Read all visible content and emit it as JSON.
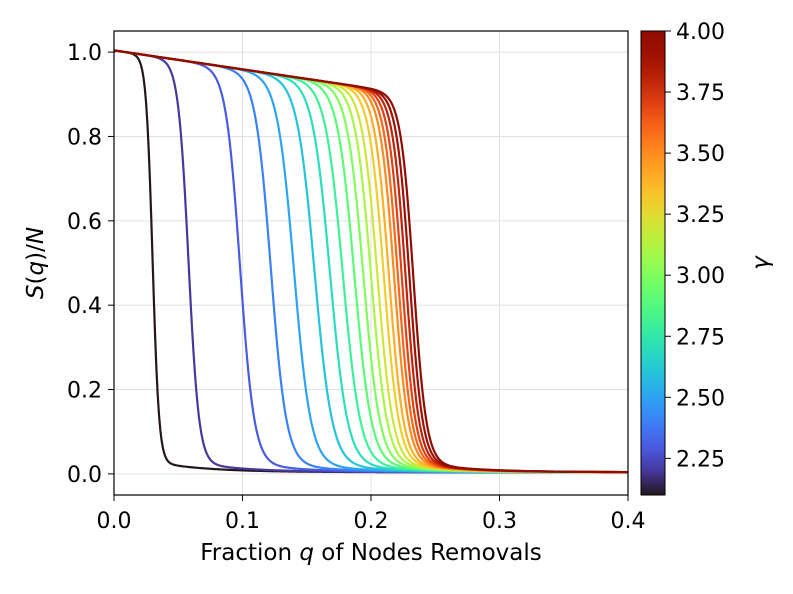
{
  "chart_data": {
    "type": "line",
    "title": "",
    "xlabel": {
      "pre": "Fraction ",
      "var": "q",
      "post": " of Nodes Removals"
    },
    "ylabel": {
      "a": "S",
      "b": "(",
      "c": "q",
      "d": ")/",
      "e": "N"
    },
    "xlim": [
      0.0,
      0.4
    ],
    "ylim": [
      -0.05,
      1.05
    ],
    "grid": true,
    "xticks": [
      0.0,
      0.1,
      0.2,
      0.3,
      0.4
    ],
    "xtick_labels": [
      "0.0",
      "0.1",
      "0.2",
      "0.3",
      "0.4"
    ],
    "yticks": [
      0.0,
      0.2,
      0.4,
      0.6,
      0.8,
      1.0
    ],
    "ytick_labels": [
      "0.0",
      "0.2",
      "0.4",
      "0.6",
      "0.8",
      "1.0"
    ],
    "colorbar": {
      "label": "γ",
      "colormap": "turbo",
      "range": [
        2.1,
        4.0
      ],
      "ticks": [
        2.25,
        2.5,
        2.75,
        3.0,
        3.25,
        3.5,
        3.75,
        4.0
      ],
      "tick_labels": [
        "2.25",
        "2.50",
        "2.75",
        "3.00",
        "3.25",
        "3.50",
        "3.75",
        "4.00"
      ]
    },
    "series_model": "logistic collapse: S(q) = (1 - 0.45q) * (1 - 1/(1 + exp(-(q - qc)/w))) with small residual tail",
    "series": [
      {
        "gamma": 2.1,
        "qc": 0.03,
        "w": 0.0025
      },
      {
        "gamma": 2.2,
        "qc": 0.058,
        "w": 0.004
      },
      {
        "gamma": 2.3,
        "qc": 0.098,
        "w": 0.0055
      },
      {
        "gamma": 2.4,
        "qc": 0.122,
        "w": 0.006
      },
      {
        "gamma": 2.5,
        "qc": 0.14,
        "w": 0.0065
      },
      {
        "gamma": 2.6,
        "qc": 0.156,
        "w": 0.0068
      },
      {
        "gamma": 2.7,
        "qc": 0.168,
        "w": 0.0068
      },
      {
        "gamma": 2.8,
        "qc": 0.178,
        "w": 0.0068
      },
      {
        "gamma": 2.9,
        "qc": 0.187,
        "w": 0.0066
      },
      {
        "gamma": 3.0,
        "qc": 0.194,
        "w": 0.0064
      },
      {
        "gamma": 3.1,
        "qc": 0.2,
        "w": 0.0062
      },
      {
        "gamma": 3.2,
        "qc": 0.205,
        "w": 0.006
      },
      {
        "gamma": 3.3,
        "qc": 0.21,
        "w": 0.0058
      },
      {
        "gamma": 3.4,
        "qc": 0.214,
        "w": 0.0056
      },
      {
        "gamma": 3.5,
        "qc": 0.218,
        "w": 0.0055
      },
      {
        "gamma": 3.6,
        "qc": 0.221,
        "w": 0.0054
      },
      {
        "gamma": 3.7,
        "qc": 0.224,
        "w": 0.0053
      },
      {
        "gamma": 3.8,
        "qc": 0.227,
        "w": 0.0052
      },
      {
        "gamma": 3.9,
        "qc": 0.23,
        "w": 0.0051
      },
      {
        "gamma": 4.0,
        "qc": 0.233,
        "w": 0.005
      }
    ]
  }
}
